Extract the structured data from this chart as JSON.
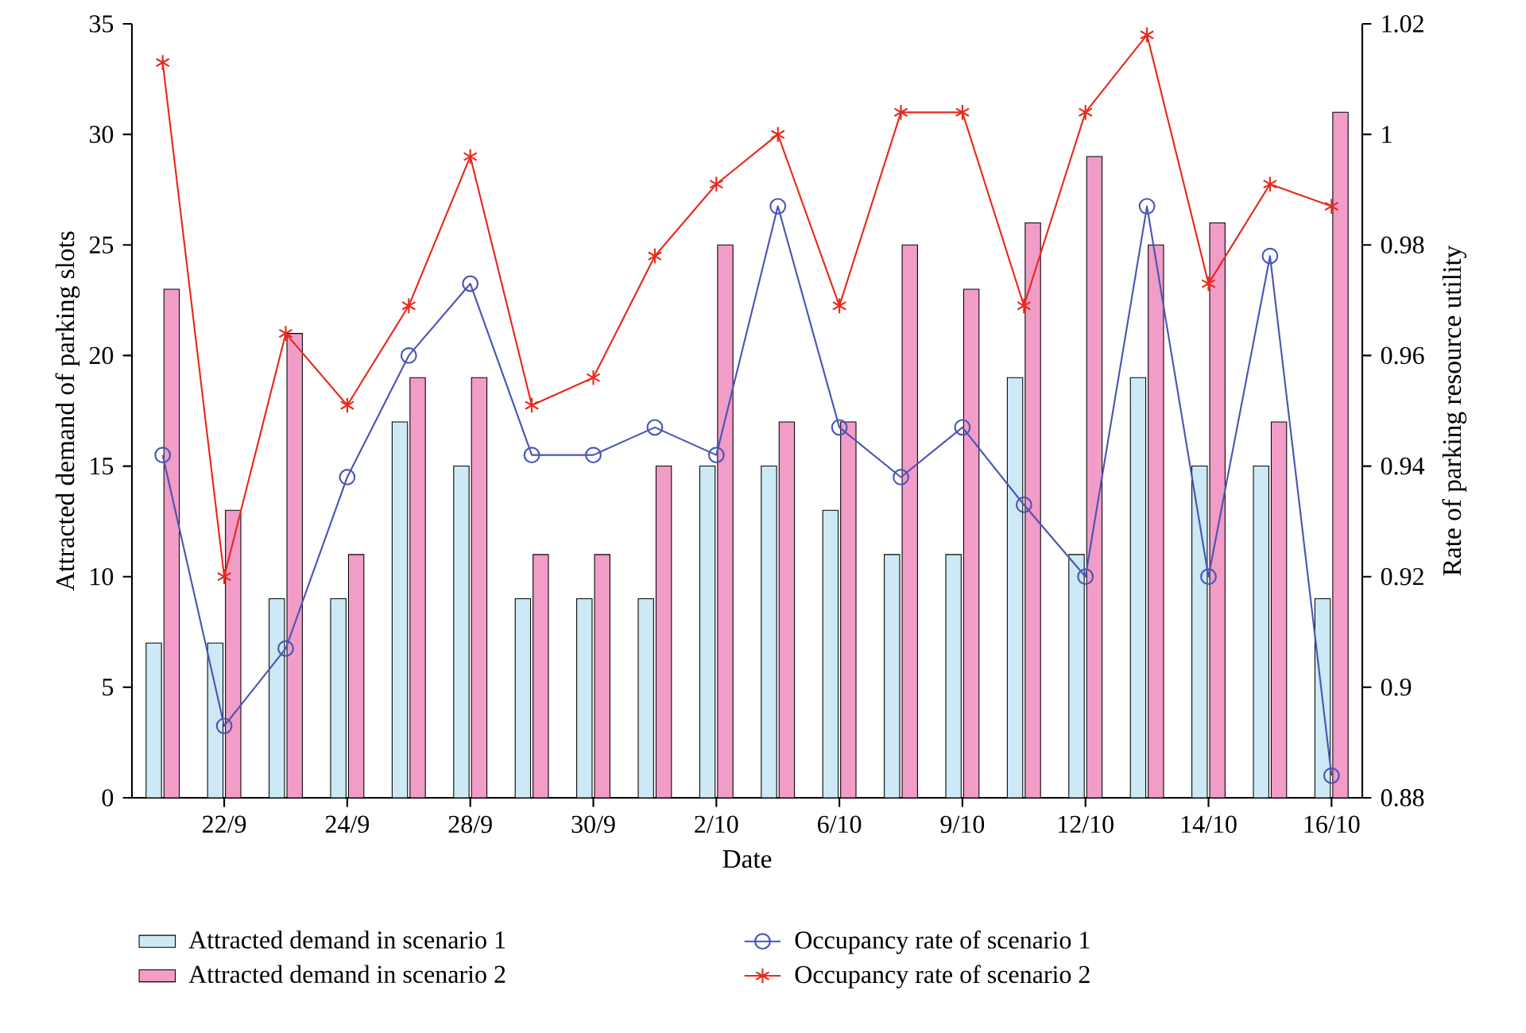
{
  "chart_data": {
    "type": "bar",
    "xlabel": "Date",
    "ylabel": "Attracted demand of parking slots",
    "y2label": "Rate of parking resource utility",
    "categories": [
      null,
      "22/9",
      null,
      "24/9",
      null,
      "28/9",
      null,
      "30/9",
      null,
      "2/10",
      null,
      "6/10",
      null,
      "9/10",
      null,
      "12/10",
      null,
      "14/10",
      null,
      "16/10"
    ],
    "ylim": [
      0,
      35
    ],
    "yticks": [
      0,
      5,
      10,
      15,
      20,
      25,
      30,
      35
    ],
    "y2lim": [
      0.88,
      1.02
    ],
    "y2ticks": [
      0.88,
      0.9,
      0.92,
      0.94,
      0.96,
      0.98,
      1,
      1.02
    ],
    "legend": "bottom",
    "grid": false,
    "line_style": "solid",
    "series": [
      {
        "name": "Attracted demand in scenario 1",
        "color": "#cce9f5",
        "values": [
          7,
          7,
          9,
          9,
          17,
          15,
          9,
          9,
          9,
          15,
          15,
          13,
          11,
          11,
          19,
          11,
          19,
          15,
          15,
          9
        ]
      },
      {
        "name": "Attracted demand in scenario 2",
        "color": "#f29cc8",
        "values": [
          23,
          13,
          21,
          11,
          19,
          19,
          11,
          11,
          15,
          25,
          17,
          17,
          25,
          23,
          26,
          29,
          25,
          26,
          17,
          31
        ]
      },
      {
        "name": "Occupancy rate of scenario 1",
        "type": "line",
        "axis": "y2",
        "marker": "circle",
        "color": "#4a55b5",
        "values": [
          0.942,
          0.893,
          0.907,
          0.938,
          0.96,
          0.973,
          0.942,
          0.942,
          0.947,
          0.942,
          0.987,
          0.947,
          0.938,
          0.947,
          0.933,
          0.92,
          0.987,
          0.92,
          0.978,
          0.884
        ]
      },
      {
        "name": "Occupancy rate of scenario 2",
        "type": "line",
        "axis": "y2",
        "marker": "cross",
        "color": "#e8291c",
        "values": [
          1.013,
          0.92,
          0.964,
          0.951,
          0.969,
          0.996,
          0.951,
          0.956,
          0.978,
          0.991,
          1.0,
          0.969,
          1.004,
          1.004,
          0.969,
          1.004,
          1.018,
          0.973,
          0.991,
          0.987
        ]
      }
    ]
  }
}
